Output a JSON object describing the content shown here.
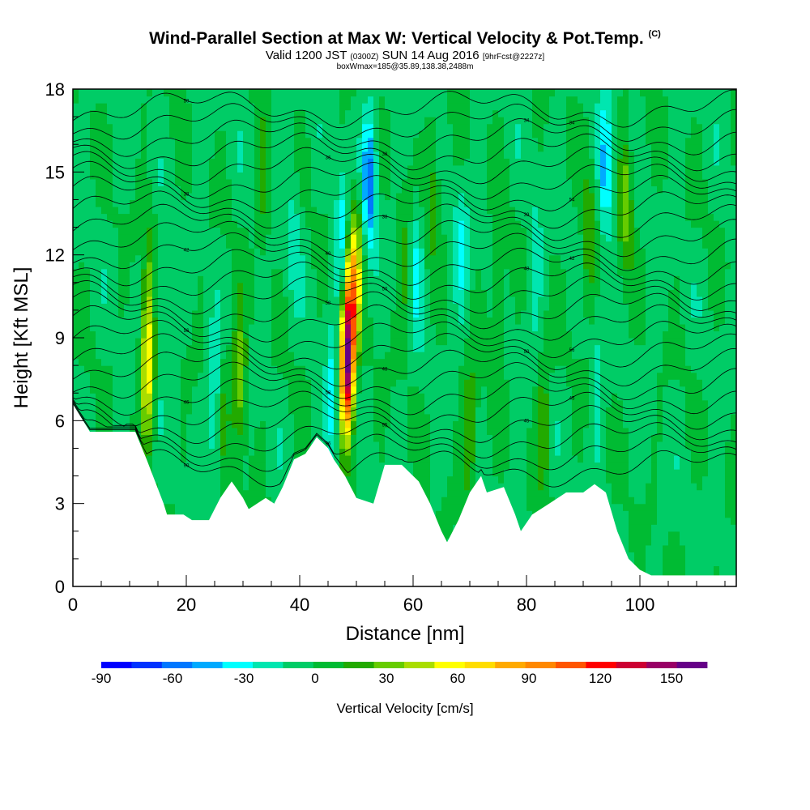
{
  "header": {
    "title": "Wind-Parallel Section at Max W: Vertical Velocity & Pot.Temp.",
    "copyright": "(C)",
    "valid_prefix": "Valid 1200 JST",
    "valid_utc": "(0300Z)",
    "valid_date": "SUN 14 Aug 2016",
    "forecast": "[9hrFcst@2227z]",
    "box_info": "boxWmax=185@35.89,138.38,2488m"
  },
  "chart_data": {
    "type": "heatmap",
    "xlabel": "Distance [nm]",
    "ylabel": "Height [Kft MSL]",
    "xlim": [
      0,
      117
    ],
    "ylim": [
      0,
      18
    ],
    "x_ticks": [
      "0",
      "20",
      "40",
      "60",
      "80",
      "100"
    ],
    "y_ticks": [
      "0",
      "3",
      "6",
      "9",
      "12",
      "15",
      "18"
    ],
    "colorbar": {
      "label": "Vertical Velocity [cm/s]",
      "range": [
        -90,
        165
      ],
      "step": 15,
      "tick_labels": [
        "-90",
        "-60",
        "-30",
        "0",
        "30",
        "60",
        "90",
        "120",
        "150"
      ],
      "colors": [
        "#0000ff",
        "#0033ff",
        "#0077ff",
        "#00aaff",
        "#00ffff",
        "#00e6b0",
        "#00cc66",
        "#00bb33",
        "#22aa00",
        "#66cc00",
        "#aadd00",
        "#ffff00",
        "#ffdd00",
        "#ffaa00",
        "#ff8800",
        "#ff5500",
        "#ff0000",
        "#cc0033",
        "#990066",
        "#660088"
      ]
    },
    "terrain_kft": [
      [
        0,
        6.6
      ],
      [
        3,
        5.6
      ],
      [
        11,
        5.6
      ],
      [
        13,
        4.6
      ],
      [
        16,
        3.0
      ],
      [
        16.6,
        2.6
      ],
      [
        19.5,
        2.6
      ],
      [
        21,
        2.4
      ],
      [
        24,
        2.4
      ],
      [
        26,
        3.2
      ],
      [
        28,
        3.8
      ],
      [
        30,
        3.2
      ],
      [
        31,
        2.8
      ],
      [
        34,
        3.2
      ],
      [
        35.5,
        3.0
      ],
      [
        37,
        3.6
      ],
      [
        39,
        4.6
      ],
      [
        41,
        4.8
      ],
      [
        43,
        5.4
      ],
      [
        45,
        5.0
      ],
      [
        46,
        4.6
      ],
      [
        48,
        4.0
      ],
      [
        50,
        3.2
      ],
      [
        53,
        3.0
      ],
      [
        55,
        4.4
      ],
      [
        58,
        4.4
      ],
      [
        61,
        3.8
      ],
      [
        63,
        3.0
      ],
      [
        65,
        2.0
      ],
      [
        66,
        1.6
      ],
      [
        68,
        2.4
      ],
      [
        70,
        3.4
      ],
      [
        72,
        4.0
      ],
      [
        73,
        3.4
      ],
      [
        76,
        3.6
      ],
      [
        78,
        2.6
      ],
      [
        79,
        2.0
      ],
      [
        81,
        2.6
      ],
      [
        84,
        3.0
      ],
      [
        87,
        3.4
      ],
      [
        90,
        3.4
      ],
      [
        92,
        3.7
      ],
      [
        94,
        3.4
      ],
      [
        96,
        2.0
      ],
      [
        98,
        1.0
      ],
      [
        100,
        0.6
      ],
      [
        102,
        0.4
      ],
      [
        117,
        0.4
      ]
    ],
    "features": [
      {
        "x": 48.3,
        "z": 7.8,
        "w": 160
      },
      {
        "x": 49.0,
        "z": 10.2,
        "w": 100
      },
      {
        "x": 50.0,
        "z": 12.0,
        "w": 45
      },
      {
        "x": 13.2,
        "z": 8.0,
        "w": 85
      },
      {
        "x": 29.4,
        "z": 7.5,
        "w": 50
      },
      {
        "x": 13.5,
        "z": 11.5,
        "w": 25
      },
      {
        "x": 26.5,
        "z": 7.0,
        "w": 20
      },
      {
        "x": 33.5,
        "z": 14.5,
        "w": 25
      },
      {
        "x": 58.5,
        "z": 11.5,
        "w": 25
      },
      {
        "x": 63.5,
        "z": 14.5,
        "w": 28
      },
      {
        "x": 70.0,
        "z": 5.5,
        "w": 40
      },
      {
        "x": 75.0,
        "z": 10.5,
        "w": 30
      },
      {
        "x": 83.0,
        "z": 6.0,
        "w": 30
      },
      {
        "x": 91.0,
        "z": 12.5,
        "w": 35
      },
      {
        "x": 97.5,
        "z": 14.0,
        "w": 45
      },
      {
        "x": 52.3,
        "z": 14.8,
        "w": -70
      },
      {
        "x": 47.5,
        "z": 12.5,
        "w": -45
      },
      {
        "x": 45.8,
        "z": 6.5,
        "w": -40
      },
      {
        "x": 25.0,
        "z": 7.0,
        "w": -35
      },
      {
        "x": 15.5,
        "z": 10.0,
        "w": -25
      },
      {
        "x": 60.5,
        "z": 11.5,
        "w": -30
      },
      {
        "x": 68.5,
        "z": 12.0,
        "w": -30
      },
      {
        "x": 81.5,
        "z": 12.0,
        "w": -25
      },
      {
        "x": 94.0,
        "z": 15.0,
        "w": -50
      },
      {
        "x": 92.5,
        "z": 7.5,
        "w": -20
      },
      {
        "x": 39.0,
        "z": 13.0,
        "w": -20
      }
    ],
    "contour_labels": [
      "90",
      "96",
      "95",
      "45",
      "45",
      "46",
      "58",
      "48",
      "50",
      "56",
      "56",
      "58",
      "50",
      "48",
      "42",
      "42",
      "40",
      "38",
      "39",
      "54",
      "38",
      "36",
      "38",
      "34",
      "34",
      "50",
      "38",
      "30"
    ]
  }
}
